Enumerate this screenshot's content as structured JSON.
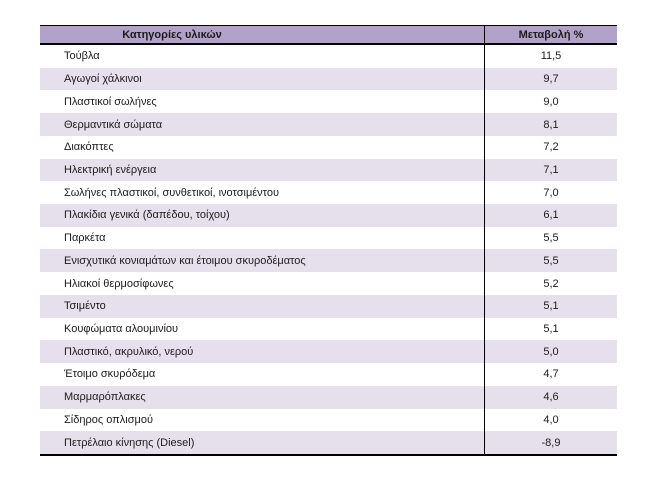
{
  "table": {
    "column_headers": {
      "materials": "Κατηγορίες υλικών",
      "change": "Μεταβολή %"
    },
    "rows": [
      {
        "label": "Τούβλα",
        "value": "11,5"
      },
      {
        "label": "Αγωγοί χάλκινοι",
        "value": "9,7"
      },
      {
        "label": "Πλαστικοί σωλήνες",
        "value": "9,0"
      },
      {
        "label": "Θερμαντικά σώματα",
        "value": "8,1"
      },
      {
        "label": "Διακόπτες",
        "value": "7,2"
      },
      {
        "label": "Ηλεκτρική ενέργεια",
        "value": "7,1"
      },
      {
        "label": "Σωλήνες πλαστικοί, συνθετικοί, ινοτσιμέντου",
        "value": "7,0"
      },
      {
        "label": "Πλακίδια γενικά (δαπέδου, τοίχου)",
        "value": "6,1"
      },
      {
        "label": "Παρκέτα",
        "value": "5,5"
      },
      {
        "label": "Ενισχυτικά κονιαμάτων και έτοιμου σκυροδέματος",
        "value": "5,5"
      },
      {
        "label": "Ηλιακοί θερμοσίφωνες",
        "value": "5,2"
      },
      {
        "label": "Τσιμέντο",
        "value": "5,1"
      },
      {
        "label": "Κουφώματα αλουμινίου",
        "value": "5,1"
      },
      {
        "label": "Πλαστικό, ακρυλικό, νερού",
        "value": "5,0"
      },
      {
        "label": "Έτοιμο σκυρόδεμα",
        "value": "4,7"
      },
      {
        "label": "Μαρμαρόπλακες",
        "value": "4,6"
      },
      {
        "label": "Σίδηρος οπλισμού",
        "value": "4,0"
      },
      {
        "label": "Πετρέλαιο κίνησης (Diesel)",
        "value": "-8,9"
      }
    ]
  },
  "colors": {
    "header_bg": "#B1A2C9",
    "row_alt_bg": "#E5E0EC",
    "border": "#000000",
    "text": "#1C1C1C"
  }
}
